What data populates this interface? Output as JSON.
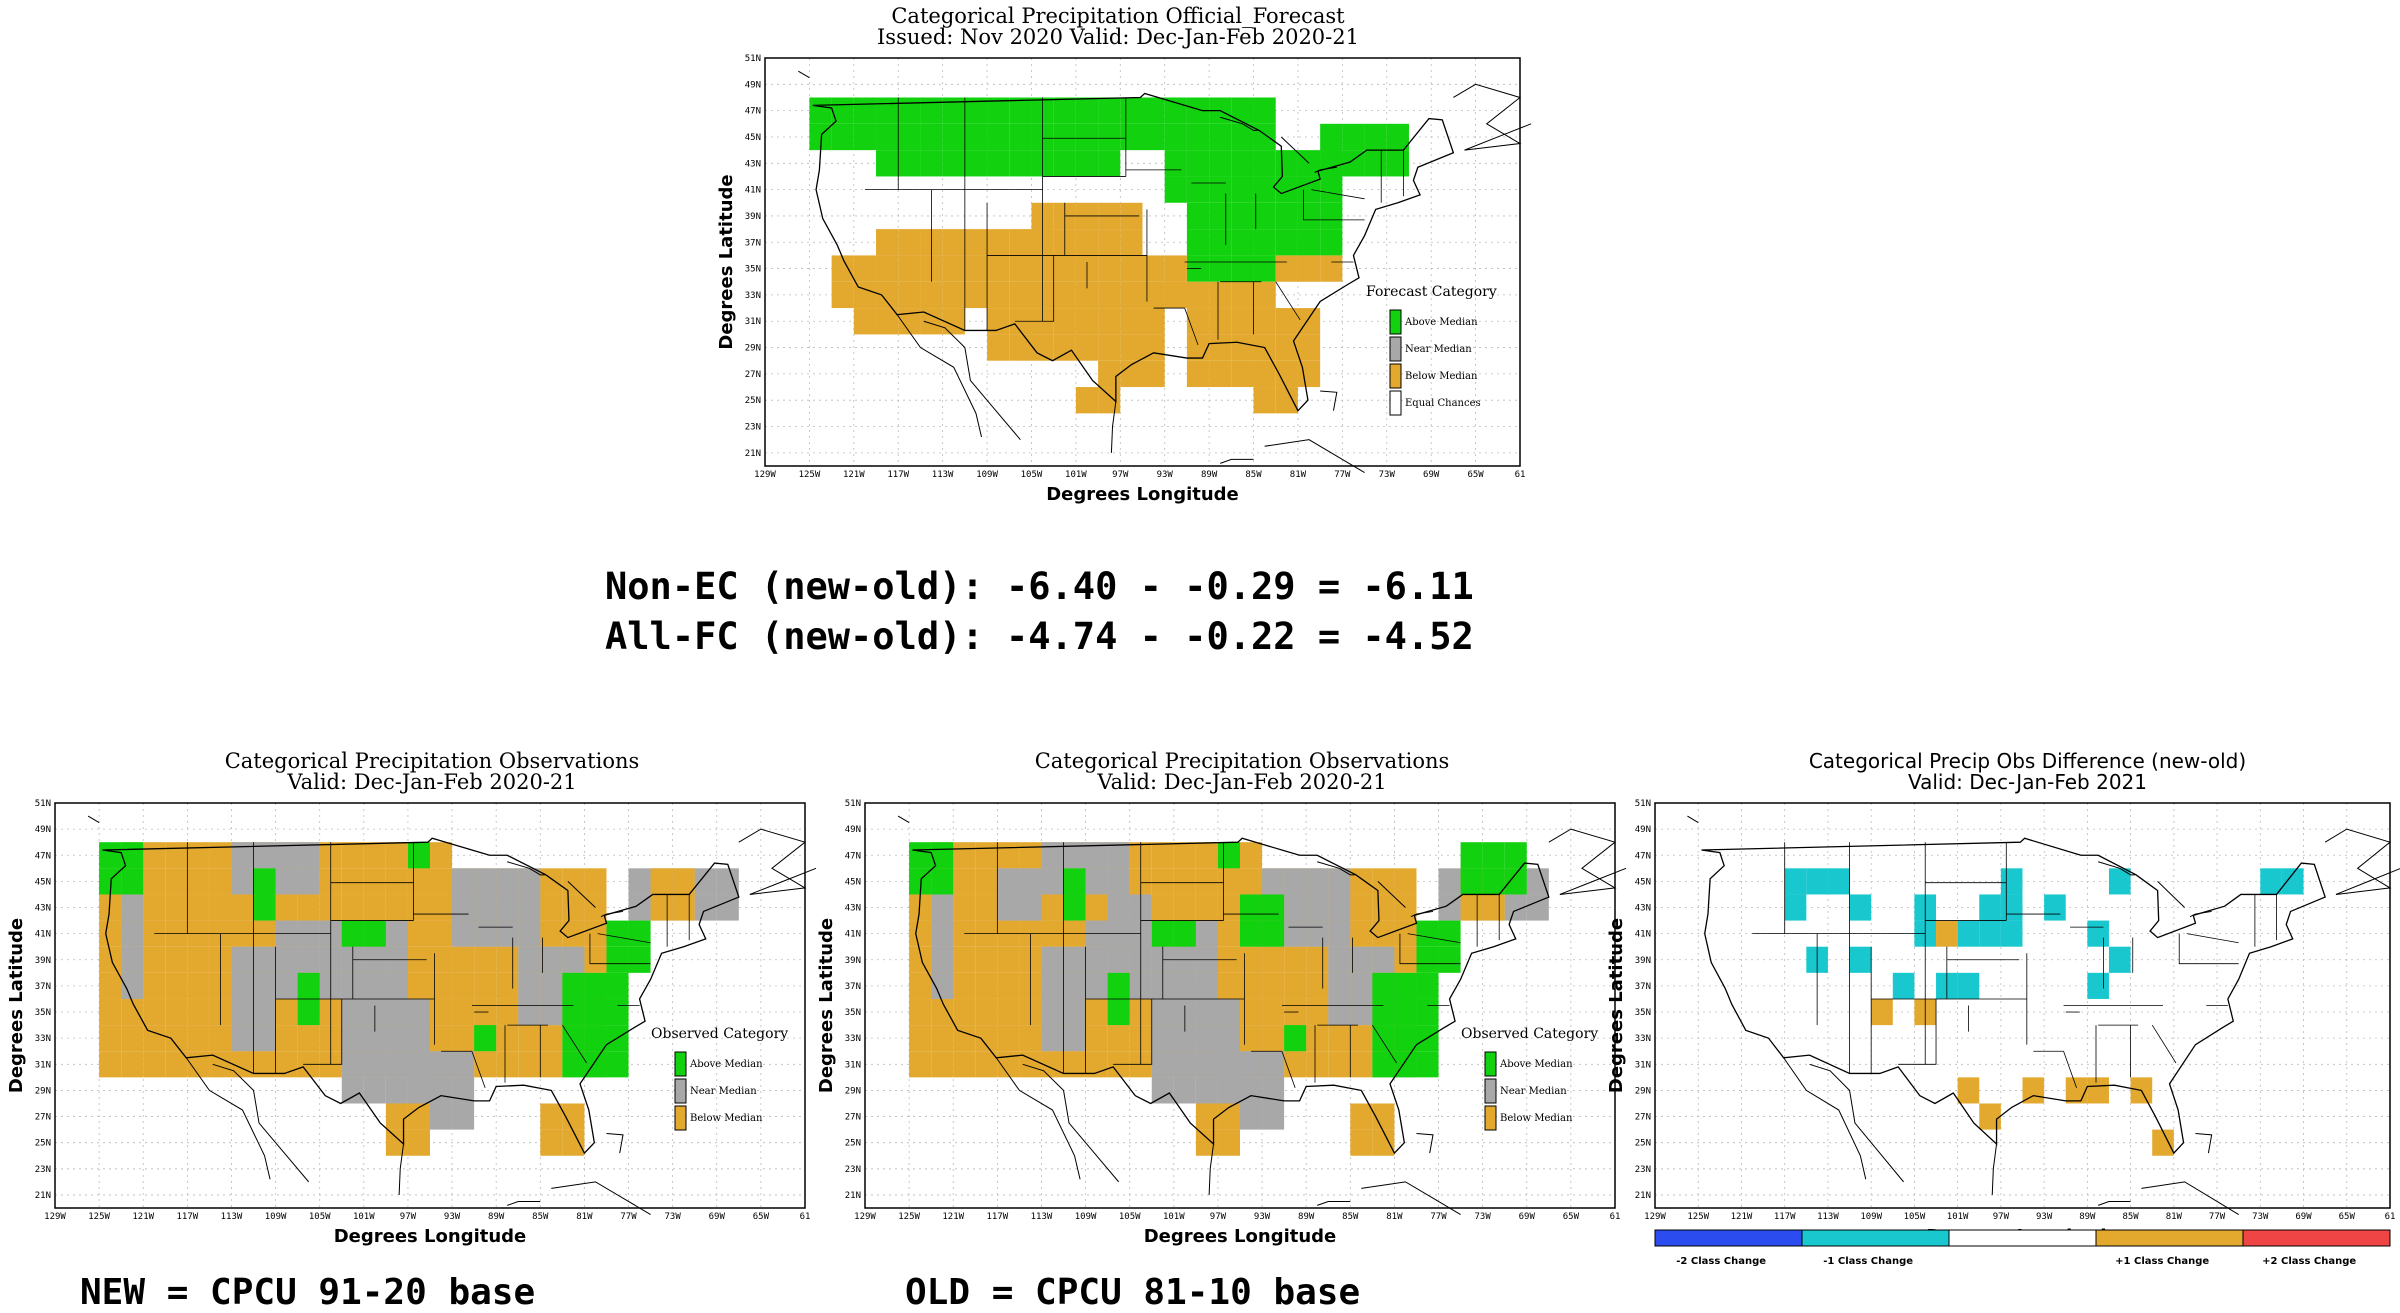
{
  "colors": {
    "above": "#12d20f",
    "near": "#a8a8a8",
    "below": "#e3a92f",
    "ec": "#ffffff",
    "minus2": "#2b4df0",
    "minus1": "#19c8cf",
    "plus1": "#e3a92f",
    "plus2": "#f04545",
    "nochange": "#ffffff"
  },
  "lat_ticks": [
    "51N",
    "49N",
    "47N",
    "45N",
    "43N",
    "41N",
    "39N",
    "37N",
    "35N",
    "33N",
    "31N",
    "29N",
    "27N",
    "25N",
    "23N",
    "21N"
  ],
  "lon_ticks": [
    "129W",
    "125W",
    "121W",
    "117W",
    "113W",
    "109W",
    "105W",
    "101W",
    "97W",
    "93W",
    "89W",
    "85W",
    "81W",
    "77W",
    "73W",
    "69W",
    "65W",
    "61"
  ],
  "ylabel": "Degrees Latitude",
  "xlabel": "Degrees Longitude",
  "forecast": {
    "title1": "Categorical Precipitation Official_Forecast",
    "title2": "Issued: Nov 2020 Valid: Dec-Jan-Feb 2020-21",
    "legend_title": "Forecast Category",
    "legend": [
      "Above Median",
      "Near Median",
      "Below Median",
      "Equal Chances"
    ]
  },
  "scores": {
    "line1": "Non-EC (new-old): -6.40 - -0.29 = -6.11",
    "line2": "All-FC (new-old): -4.74 - -0.22 = -4.52"
  },
  "obs_new": {
    "title1": "Categorical Precipitation Observations",
    "title2": "Valid: Dec-Jan-Feb 2020-21",
    "legend_title": "Observed Category",
    "legend": [
      "Above Median",
      "Near Median",
      "Below Median"
    ],
    "caption": "NEW = CPCU 91-20 base"
  },
  "obs_old": {
    "title1": "Categorical Precipitation Observations",
    "title2": "Valid: Dec-Jan-Feb 2020-21",
    "legend_title": "Observed Category",
    "legend": [
      "Above Median",
      "Near Median",
      "Below Median"
    ],
    "caption": "OLD = CPCU 81-10 base"
  },
  "diff": {
    "title1": "Categorical Precip Obs Difference (new-old)",
    "title2": "Valid: Dec-Jan-Feb 2021",
    "legend": [
      "-2 Class Change",
      "-1 Class Change",
      "+1 Class Change",
      "+2 Class Change"
    ]
  }
}
